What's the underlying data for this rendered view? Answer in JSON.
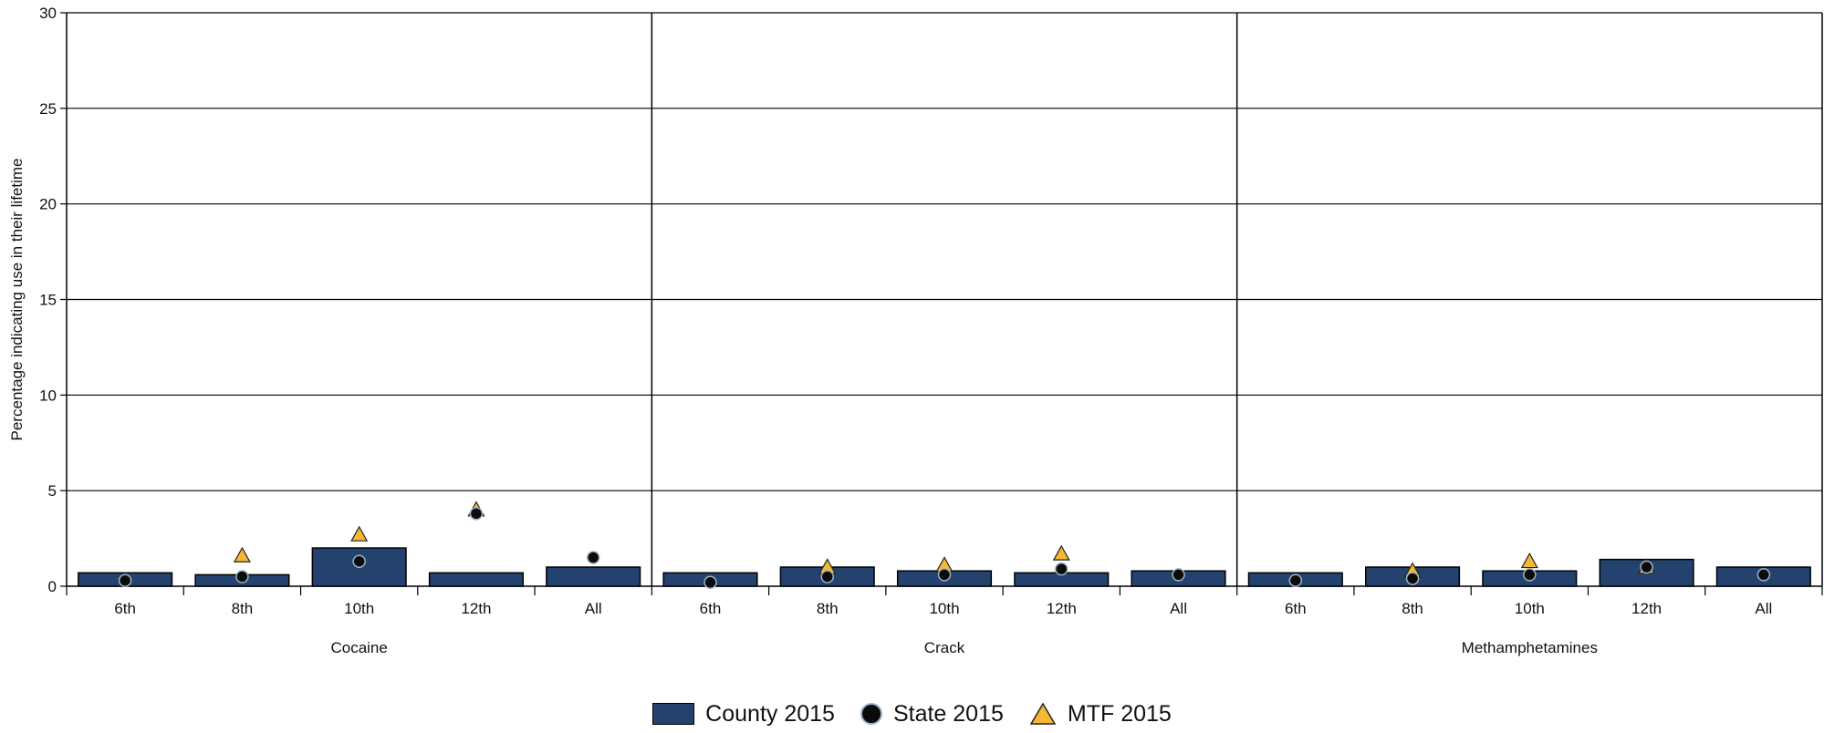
{
  "chart_data": {
    "type": "bar",
    "ylabel": "Percentage indicating use in their lifetime",
    "ylim": [
      0,
      30
    ],
    "yticks": [
      0,
      5,
      10,
      15,
      20,
      25,
      30
    ],
    "grid": true,
    "legend_position": "bottom-center",
    "categories": [
      "6th",
      "8th",
      "10th",
      "12th",
      "All"
    ],
    "groups": [
      {
        "name": "Cocaine",
        "series": [
          {
            "name": "County 2015",
            "values": [
              0.7,
              0.6,
              2.0,
              0.7,
              1.0
            ]
          },
          {
            "name": "State 2015",
            "values": [
              0.3,
              0.5,
              1.3,
              3.8,
              1.5
            ]
          },
          {
            "name": "MTF 2015",
            "values": [
              null,
              1.6,
              2.7,
              4.0,
              null
            ]
          }
        ]
      },
      {
        "name": "Crack",
        "series": [
          {
            "name": "County 2015",
            "values": [
              0.7,
              1.0,
              0.8,
              0.7,
              0.8
            ]
          },
          {
            "name": "State 2015",
            "values": [
              0.2,
              0.5,
              0.6,
              0.9,
              0.6
            ]
          },
          {
            "name": "MTF 2015",
            "values": [
              null,
              1.0,
              1.1,
              1.7,
              null
            ]
          }
        ]
      },
      {
        "name": "Methamphetamines",
        "series": [
          {
            "name": "County 2015",
            "values": [
              0.7,
              1.0,
              0.8,
              1.4,
              1.0
            ]
          },
          {
            "name": "State 2015",
            "values": [
              0.3,
              0.4,
              0.6,
              1.0,
              0.6
            ]
          },
          {
            "name": "MTF 2015",
            "values": [
              null,
              0.8,
              1.3,
              1.0,
              null
            ]
          }
        ]
      }
    ]
  },
  "legend": {
    "county_label": "County 2015",
    "state_label": "State 2015",
    "mtf_label": "MTF 2015"
  },
  "colors": {
    "county_bar": "#24426e",
    "state_dot": "#0b0b0b",
    "state_dot_edge": "#9fb3c8",
    "mtf_triangle": "#f5b833"
  }
}
